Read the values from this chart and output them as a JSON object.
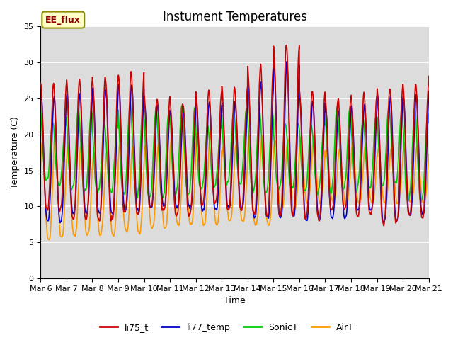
{
  "title": "Instument Temperatures",
  "xlabel": "Time",
  "ylabel": "Temperature (C)",
  "ylim": [
    0,
    35
  ],
  "plot_bg_color": "#dcdcdc",
  "fig_bg_color": "#ffffff",
  "grid_color": "#ffffff",
  "annotation_text": "EE_flux",
  "annotation_bg": "#ffffc8",
  "annotation_border": "#8b8b00",
  "series_colors": {
    "li75_t": "#cc0000",
    "li77_temp": "#0000cc",
    "SonicT": "#00cc00",
    "AirT": "#ff9900"
  },
  "legend_labels": [
    "li75_t",
    "li77_temp",
    "SonicT",
    "AirT"
  ],
  "xtick_labels": [
    "Mar 6",
    "Mar 7",
    "Mar 8",
    "Mar 9",
    "Mar 10",
    "Mar 11",
    "Mar 12",
    "Mar 13",
    "Mar 14",
    "Mar 15",
    "Mar 16",
    "Mar 17",
    "Mar 18",
    "Mar 19",
    "Mar 20",
    "Mar 21"
  ],
  "n_days": 15,
  "title_fontsize": 12,
  "axis_fontsize": 9,
  "tick_fontsize": 8,
  "legend_fontsize": 9,
  "linewidth": 1.2,
  "seed": 123
}
